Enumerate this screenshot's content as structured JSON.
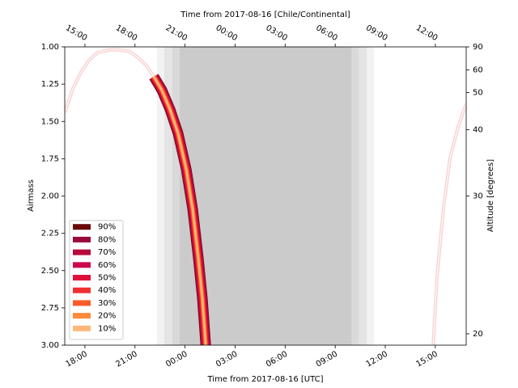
{
  "chart_data": {
    "type": "airmass",
    "title": "Time from 2017-08-16 [Chile/Continental]",
    "x_label": "Time from 2017-08-16 [UTC]",
    "y_label": "Airmass",
    "y2_label": "Altitude [degrees]",
    "x": [
      16.8,
      17.27,
      17.76,
      18.24,
      18.73,
      19.46,
      19.94,
      20.67,
      21.16,
      21.64,
      22.13,
      22.61,
      23.1,
      23.58,
      24.07,
      24.46,
      24.8,
      25.04,
      25.24,
      38.87,
      39.11,
      39.5,
      39.89,
      40.38,
      40.85
    ],
    "values": [
      1.44,
      1.28,
      1.17,
      1.09,
      1.04,
      1.02,
      1.02,
      1.03,
      1.07,
      1.12,
      1.2,
      1.29,
      1.42,
      1.58,
      1.82,
      2.09,
      2.42,
      2.69,
      3.0,
      3.0,
      2.53,
      2.07,
      1.74,
      1.53,
      1.38
    ],
    "curve_color": "#f3bcbc",
    "series": [
      {
        "name": "90%",
        "color": "#6a0a0a"
      },
      {
        "name": "80%",
        "color": "#9b0a3c"
      },
      {
        "name": "70%",
        "color": "#b8093d"
      },
      {
        "name": "60%",
        "color": "#cc0848"
      },
      {
        "name": "50%",
        "color": "#e0103c"
      },
      {
        "name": "40%",
        "color": "#f03030"
      },
      {
        "name": "30%",
        "color": "#fa5a28"
      },
      {
        "name": "20%",
        "color": "#fd8a3a"
      },
      {
        "name": "10%",
        "color": "#fdb97a"
      }
    ],
    "shading": [
      {
        "start": 22.32,
        "end": 35.33,
        "color": "#f2f2f2"
      },
      {
        "start": 22.76,
        "end": 34.89,
        "color": "#e4e4e4"
      },
      {
        "start": 23.24,
        "end": 34.41,
        "color": "#d9d9d9"
      },
      {
        "start": 23.68,
        "end": 33.97,
        "color": "#cbcbcb"
      }
    ],
    "xlim": [
      16.79,
      40.85
    ],
    "xticks": [
      {
        "value": 18,
        "label": "18:00"
      },
      {
        "value": 21,
        "label": "21:00"
      },
      {
        "value": 24,
        "label": "00:00"
      },
      {
        "value": 27,
        "label": "03:00"
      },
      {
        "value": 30,
        "label": "06:00"
      },
      {
        "value": 33,
        "label": "09:00"
      },
      {
        "value": 36,
        "label": "12:00"
      },
      {
        "value": 39,
        "label": "15:00"
      }
    ],
    "x2ticks": [
      {
        "value": 18,
        "label": "15:00"
      },
      {
        "value": 21,
        "label": "18:00"
      },
      {
        "value": 24,
        "label": "21:00"
      },
      {
        "value": 27,
        "label": "00:00"
      },
      {
        "value": 30,
        "label": "03:00"
      },
      {
        "value": 33,
        "label": "06:00"
      },
      {
        "value": 36,
        "label": "09:00"
      },
      {
        "value": 39,
        "label": "12:00"
      }
    ],
    "ylim": [
      3,
      1
    ],
    "yticks": [
      {
        "value": 1,
        "label": "1.00"
      },
      1.25,
      {
        "value": 1.5,
        "label": "1.50"
      },
      1.75,
      {
        "value": 2,
        "label": "2.00"
      },
      2.25,
      {
        "value": 2.5,
        "label": "2.50"
      },
      2.75,
      {
        "value": 3,
        "label": "3.00"
      }
    ],
    "y2ticks": [
      90,
      60,
      50,
      40,
      30,
      20
    ],
    "legend": "lower left"
  }
}
